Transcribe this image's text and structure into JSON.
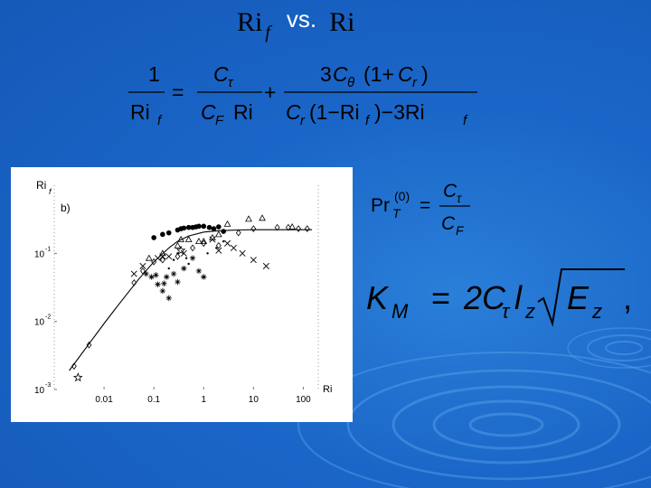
{
  "slide": {
    "title_ri": "Ri",
    "title_sub": "f",
    "title_vs": "vs.",
    "title_ri2": "Ri"
  },
  "equations": {
    "eq1": {
      "lhs_num": "1",
      "lhs_den": "Ri",
      "lhs_den_sub": "f",
      "t1_num": "C",
      "t1_num_sub": "τ",
      "t1_den": "C",
      "t1_den_sub": "F",
      "t1_den_tail": "Ri",
      "t2_num_a": "3",
      "t2_num_b": "C",
      "t2_num_b_sub": "θ",
      "t2_num_c": "(1+",
      "t2_num_d": "C",
      "t2_num_d_sub": "r",
      "t2_num_e": ")",
      "t2_den_a": "C",
      "t2_den_a_sub": "r",
      "t2_den_b": "(1−Ri",
      "t2_den_b_sub": "f",
      "t2_den_c": ")−3Ri",
      "t2_den_c_sub": "f"
    },
    "eq2": {
      "lhs": "Pr",
      "lhs_sub": "T",
      "lhs_sup": "(0)",
      "num": "C",
      "num_sub": "τ",
      "den": "C",
      "den_sub": "F"
    },
    "eq3": {
      "lhs": "K",
      "lhs_sub": "M",
      "rhs_coef": "2C",
      "rhs_coef_sub": "τ",
      "rhs_l": "l",
      "rhs_l_sub": "z",
      "rad": "E",
      "rad_sub": "z",
      "tail": ","
    }
  },
  "chart_data": {
    "type": "scatter",
    "panel_label": "b)",
    "ylabel": "Ri",
    "ylabel_sub": "f",
    "xlabel": "Ri",
    "x_scale": "log",
    "y_scale": "log",
    "xlim": [
      0.001,
      200
    ],
    "ylim": [
      0.001,
      1
    ],
    "x_ticks": [
      {
        "value": 0.01,
        "label": "0.01"
      },
      {
        "value": 0.1,
        "label": "0.1"
      },
      {
        "value": 1,
        "label": "1"
      },
      {
        "value": 10,
        "label": "10"
      },
      {
        "value": 100,
        "label": "100"
      }
    ],
    "y_ticks": [
      {
        "value": 0.001,
        "label": "10",
        "exp": "-3"
      },
      {
        "value": 0.01,
        "label": "10",
        "exp": "-2"
      },
      {
        "value": 0.1,
        "label": "10",
        "exp": "-1"
      }
    ],
    "curve": {
      "x": [
        0.002,
        0.005,
        0.01,
        0.02,
        0.05,
        0.1,
        0.2,
        0.3,
        0.5,
        1,
        2,
        5,
        10,
        20,
        50,
        150
      ],
      "y": [
        0.0019,
        0.0047,
        0.0093,
        0.018,
        0.042,
        0.075,
        0.12,
        0.15,
        0.18,
        0.205,
        0.215,
        0.22,
        0.222,
        0.222,
        0.222,
        0.222
      ]
    },
    "series": [
      {
        "marker": "circle",
        "x": [
          0.1,
          0.15,
          0.2,
          0.3,
          0.35,
          0.4,
          0.5,
          0.6,
          0.7,
          0.8,
          1,
          1.3,
          1.6,
          2,
          2.5
        ],
        "y": [
          0.17,
          0.19,
          0.2,
          0.22,
          0.23,
          0.235,
          0.24,
          0.24,
          0.245,
          0.25,
          0.25,
          0.24,
          0.23,
          0.245,
          0.21
        ]
      },
      {
        "marker": "triangle",
        "x": [
          0.08,
          0.15,
          0.3,
          0.35,
          0.5,
          0.8,
          1,
          1.5,
          2,
          3,
          8,
          15,
          60
        ],
        "y": [
          0.085,
          0.1,
          0.13,
          0.16,
          0.16,
          0.15,
          0.15,
          0.17,
          0.19,
          0.27,
          0.32,
          0.33,
          0.245
        ]
      },
      {
        "marker": "diamond",
        "x": [
          0.0025,
          0.005,
          0.04,
          0.06,
          0.1,
          0.15,
          0.3,
          0.6,
          1,
          2,
          5,
          10,
          30,
          50,
          80,
          120
        ],
        "y": [
          0.0022,
          0.0045,
          0.037,
          0.055,
          0.075,
          0.08,
          0.09,
          0.12,
          0.14,
          0.13,
          0.2,
          0.23,
          0.24,
          0.24,
          0.23,
          0.23
        ]
      },
      {
        "marker": "cross",
        "x": [
          0.04,
          0.06,
          0.12,
          0.15,
          0.2,
          0.4,
          1.5,
          2,
          3,
          4,
          6,
          10,
          18
        ],
        "y": [
          0.05,
          0.065,
          0.085,
          0.09,
          0.09,
          0.1,
          0.16,
          0.11,
          0.14,
          0.12,
          0.1,
          0.08,
          0.065
        ]
      },
      {
        "marker": "asterisk",
        "x": [
          0.07,
          0.09,
          0.11,
          0.12,
          0.15,
          0.16,
          0.18,
          0.2,
          0.25,
          0.3,
          0.4,
          0.6,
          0.8,
          1
        ],
        "y": [
          0.05,
          0.045,
          0.048,
          0.035,
          0.028,
          0.036,
          0.045,
          0.022,
          0.05,
          0.038,
          0.06,
          0.085,
          0.055,
          0.045
        ]
      },
      {
        "marker": "star",
        "x": [
          0.003,
          0.35
        ],
        "y": [
          0.0015,
          0.11
        ]
      },
      {
        "marker": "dot",
        "x": [
          0.2,
          0.25,
          0.3,
          0.45,
          0.5,
          1.2,
          1.8,
          2.5
        ],
        "y": [
          0.06,
          0.08,
          0.1,
          0.085,
          0.07,
          0.1,
          0.12,
          0.15
        ]
      }
    ]
  }
}
